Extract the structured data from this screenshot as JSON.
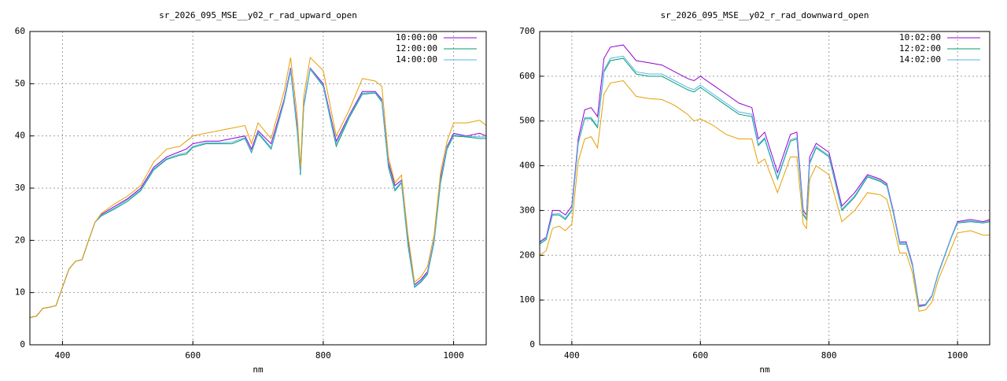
{
  "chart_data": [
    {
      "type": "line",
      "title": "sr_2026_095_MSE__y02_r_rad_upward_open",
      "x_label": "nm",
      "xlim": [
        350,
        1050
      ],
      "ylim": [
        0,
        60
      ],
      "xticks": [
        400,
        600,
        800,
        1000
      ],
      "yticks": [
        0,
        10,
        20,
        30,
        40,
        50,
        60
      ],
      "grid": true,
      "legend": "top-right",
      "x": [
        350,
        360,
        370,
        380,
        390,
        400,
        410,
        420,
        430,
        440,
        450,
        460,
        480,
        500,
        520,
        540,
        560,
        580,
        590,
        600,
        620,
        640,
        660,
        680,
        690,
        700,
        720,
        740,
        750,
        760,
        765,
        770,
        780,
        800,
        820,
        840,
        860,
        880,
        890,
        900,
        910,
        920,
        930,
        940,
        950,
        960,
        970,
        980,
        990,
        1000,
        1020,
        1040,
        1050
      ],
      "series": [
        {
          "name": "10:00:00",
          "color": "#9400d3",
          "values": [
            5.2,
            5.5,
            7,
            7.2,
            7.5,
            11,
            14.5,
            16,
            16.3,
            20,
            23.5,
            25,
            26.5,
            28,
            30,
            34,
            36,
            37,
            37.5,
            38.5,
            39,
            39,
            39.5,
            40,
            37.5,
            41,
            38.5,
            47,
            53,
            42,
            33,
            46,
            53,
            50,
            39,
            44,
            48.5,
            48.5,
            47,
            35,
            30.5,
            31.5,
            20,
            11.5,
            12.5,
            14,
            20,
            32,
            38,
            40.5,
            40,
            40.5,
            40
          ]
        },
        {
          "name": "12:00:00",
          "color": "#009e73",
          "values": [
            5.2,
            5.5,
            7,
            7.2,
            7.5,
            11,
            14.5,
            16,
            16.3,
            20,
            23.5,
            24.7,
            26,
            27.5,
            29.5,
            33.5,
            35.5,
            36.3,
            36.5,
            37.8,
            38.5,
            38.5,
            38.5,
            39.5,
            36.8,
            40.5,
            37.5,
            46.5,
            52.5,
            41,
            32.5,
            45.5,
            52.8,
            49.5,
            38,
            43.5,
            48,
            48.2,
            46.5,
            34,
            29.5,
            31,
            19,
            11,
            12,
            13.5,
            19.5,
            31,
            37.5,
            40,
            39.8,
            39.5,
            39.5
          ]
        },
        {
          "name": "14:00:00",
          "color": "#56b4e9",
          "values": [
            5.2,
            5.5,
            7,
            7.2,
            7.5,
            11,
            14.5,
            16,
            16.3,
            20,
            23.5,
            24.8,
            26.2,
            27.8,
            29.7,
            33.7,
            35.7,
            36.5,
            36.8,
            38,
            38.7,
            38.7,
            38.8,
            39.7,
            37,
            40.7,
            37.8,
            46.7,
            52.7,
            41.5,
            33,
            45.8,
            52.9,
            49.7,
            38.5,
            43.8,
            48.2,
            48.3,
            46.8,
            34.5,
            29.8,
            31.2,
            19.5,
            11.2,
            12.2,
            13.8,
            19.8,
            31.5,
            37.8,
            40.2,
            39.9,
            39.8,
            39.8
          ]
        },
        {
          "color": "#e69f00",
          "values": [
            5.2,
            5.5,
            7,
            7.2,
            7.5,
            11,
            14.5,
            16,
            16.3,
            20,
            23.5,
            25.2,
            27,
            28.5,
            30.5,
            35,
            37.5,
            38,
            39,
            40,
            40.5,
            41,
            41.5,
            42,
            38.5,
            42.5,
            39.5,
            48.5,
            55,
            44,
            34,
            47.5,
            55,
            52.5,
            40,
            45,
            51,
            50.5,
            49.5,
            36,
            31,
            32.5,
            21,
            12,
            13,
            15,
            21,
            33,
            39,
            42.5,
            42.5,
            43,
            42
          ]
        }
      ]
    },
    {
      "type": "line",
      "title": "sr_2026_095_MSE__y02_r_rad_downward_open",
      "x_label": "nm",
      "xlim": [
        350,
        1050
      ],
      "ylim": [
        0,
        700
      ],
      "xticks": [
        400,
        600,
        800,
        1000
      ],
      "yticks": [
        0,
        100,
        200,
        300,
        400,
        500,
        600,
        700
      ],
      "grid": true,
      "legend": "top-right",
      "x": [
        350,
        360,
        370,
        380,
        390,
        400,
        410,
        420,
        430,
        440,
        450,
        460,
        480,
        500,
        520,
        540,
        560,
        580,
        590,
        600,
        620,
        640,
        660,
        680,
        690,
        700,
        720,
        740,
        750,
        760,
        765,
        770,
        780,
        800,
        820,
        840,
        860,
        880,
        890,
        900,
        910,
        920,
        930,
        940,
        950,
        960,
        970,
        980,
        990,
        1000,
        1020,
        1040,
        1050
      ],
      "series": [
        {
          "name": "10:02:00",
          "color": "#9400d3",
          "values": [
            230,
            240,
            300,
            300,
            290,
            310,
            460,
            525,
            530,
            510,
            640,
            665,
            670,
            635,
            630,
            625,
            610,
            595,
            590,
            600,
            580,
            560,
            540,
            530,
            460,
            475,
            385,
            470,
            475,
            300,
            290,
            420,
            450,
            430,
            310,
            340,
            380,
            370,
            360,
            300,
            230,
            230,
            180,
            88,
            90,
            110,
            160,
            200,
            240,
            275,
            280,
            275,
            280
          ]
        },
        {
          "name": "12:02:00",
          "color": "#009e73",
          "values": [
            225,
            235,
            290,
            290,
            280,
            300,
            450,
            505,
            505,
            485,
            610,
            635,
            640,
            605,
            600,
            600,
            585,
            570,
            565,
            575,
            555,
            535,
            515,
            510,
            445,
            460,
            370,
            455,
            460,
            290,
            280,
            405,
            440,
            420,
            300,
            330,
            375,
            365,
            355,
            295,
            225,
            225,
            175,
            85,
            88,
            108,
            158,
            198,
            238,
            272,
            275,
            272,
            275
          ]
        },
        {
          "name": "14:02:00",
          "color": "#56b4e9",
          "values": [
            228,
            238,
            292,
            293,
            283,
            302,
            452,
            508,
            508,
            488,
            614,
            640,
            645,
            610,
            605,
            605,
            590,
            575,
            570,
            580,
            560,
            540,
            520,
            515,
            448,
            463,
            373,
            458,
            463,
            293,
            283,
            408,
            443,
            423,
            303,
            333,
            377,
            367,
            357,
            297,
            227,
            227,
            177,
            86,
            89,
            109,
            159,
            199,
            239,
            273,
            277,
            273,
            277
          ]
        },
        {
          "color": "#e69f00",
          "values": [
            200,
            210,
            260,
            265,
            255,
            270,
            410,
            460,
            465,
            440,
            560,
            585,
            590,
            555,
            550,
            548,
            535,
            515,
            500,
            505,
            490,
            470,
            460,
            460,
            405,
            415,
            340,
            420,
            420,
            270,
            260,
            370,
            400,
            380,
            275,
            300,
            340,
            335,
            325,
            270,
            205,
            205,
            160,
            75,
            78,
            95,
            145,
            180,
            215,
            250,
            255,
            245,
            245
          ]
        }
      ]
    }
  ]
}
